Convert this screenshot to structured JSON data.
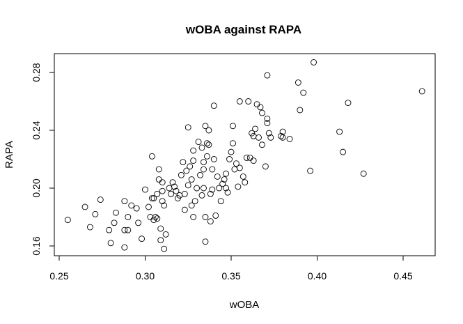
{
  "chart_data": {
    "type": "scatter",
    "title": "wOBA against RAPA",
    "xlabel": "wOBA",
    "ylabel": "RAPA",
    "xlim": [
      0.25,
      0.465
    ],
    "ylim": [
      0.152,
      0.29
    ],
    "xticks": [
      0.25,
      0.3,
      0.35,
      0.4,
      0.45
    ],
    "xtick_labels": [
      "0.25",
      "0.30",
      "0.35",
      "0.40",
      "0.45"
    ],
    "yticks": [
      0.16,
      0.2,
      0.24,
      0.28
    ],
    "ytick_labels": [
      "0.16",
      "0.20",
      "0.24",
      "0.28"
    ],
    "grid": false,
    "marker": "open-circle",
    "points": [
      [
        0.255,
        0.178
      ],
      [
        0.265,
        0.187
      ],
      [
        0.268,
        0.173
      ],
      [
        0.271,
        0.182
      ],
      [
        0.274,
        0.192
      ],
      [
        0.279,
        0.171
      ],
      [
        0.28,
        0.162
      ],
      [
        0.282,
        0.176
      ],
      [
        0.283,
        0.183
      ],
      [
        0.288,
        0.159
      ],
      [
        0.288,
        0.171
      ],
      [
        0.288,
        0.191
      ],
      [
        0.29,
        0.171
      ],
      [
        0.29,
        0.18
      ],
      [
        0.292,
        0.188
      ],
      [
        0.295,
        0.186
      ],
      [
        0.296,
        0.176
      ],
      [
        0.298,
        0.165
      ],
      [
        0.3,
        0.199
      ],
      [
        0.302,
        0.187
      ],
      [
        0.303,
        0.18
      ],
      [
        0.304,
        0.193
      ],
      [
        0.304,
        0.222
      ],
      [
        0.305,
        0.193
      ],
      [
        0.305,
        0.178
      ],
      [
        0.306,
        0.18
      ],
      [
        0.307,
        0.179
      ],
      [
        0.307,
        0.196
      ],
      [
        0.308,
        0.206
      ],
      [
        0.308,
        0.213
      ],
      [
        0.309,
        0.164
      ],
      [
        0.309,
        0.172
      ],
      [
        0.31,
        0.198
      ],
      [
        0.31,
        0.204
      ],
      [
        0.31,
        0.191
      ],
      [
        0.311,
        0.188
      ],
      [
        0.311,
        0.158
      ],
      [
        0.312,
        0.168
      ],
      [
        0.314,
        0.2
      ],
      [
        0.315,
        0.196
      ],
      [
        0.316,
        0.204
      ],
      [
        0.317,
        0.201
      ],
      [
        0.318,
        0.198
      ],
      [
        0.319,
        0.193
      ],
      [
        0.32,
        0.195
      ],
      [
        0.321,
        0.209
      ],
      [
        0.322,
        0.218
      ],
      [
        0.323,
        0.185
      ],
      [
        0.323,
        0.196
      ],
      [
        0.324,
        0.212
      ],
      [
        0.325,
        0.242
      ],
      [
        0.325,
        0.202
      ],
      [
        0.326,
        0.215
      ],
      [
        0.327,
        0.206
      ],
      [
        0.327,
        0.188
      ],
      [
        0.328,
        0.226
      ],
      [
        0.328,
        0.219
      ],
      [
        0.328,
        0.18
      ],
      [
        0.329,
        0.191
      ],
      [
        0.33,
        0.2
      ],
      [
        0.331,
        0.232
      ],
      [
        0.332,
        0.209
      ],
      [
        0.333,
        0.228
      ],
      [
        0.333,
        0.195
      ],
      [
        0.334,
        0.213
      ],
      [
        0.334,
        0.218
      ],
      [
        0.334,
        0.2
      ],
      [
        0.335,
        0.18
      ],
      [
        0.335,
        0.163
      ],
      [
        0.335,
        0.243
      ],
      [
        0.336,
        0.231
      ],
      [
        0.336,
        0.222
      ],
      [
        0.337,
        0.24
      ],
      [
        0.337,
        0.23
      ],
      [
        0.338,
        0.177
      ],
      [
        0.338,
        0.196
      ],
      [
        0.339,
        0.213
      ],
      [
        0.339,
        0.199
      ],
      [
        0.34,
        0.22
      ],
      [
        0.34,
        0.257
      ],
      [
        0.341,
        0.181
      ],
      [
        0.342,
        0.208
      ],
      [
        0.343,
        0.2
      ],
      [
        0.344,
        0.191
      ],
      [
        0.345,
        0.203
      ],
      [
        0.346,
        0.206
      ],
      [
        0.347,
        0.2
      ],
      [
        0.347,
        0.21
      ],
      [
        0.348,
        0.197
      ],
      [
        0.349,
        0.22
      ],
      [
        0.35,
        0.225
      ],
      [
        0.351,
        0.231
      ],
      [
        0.351,
        0.243
      ],
      [
        0.352,
        0.213
      ],
      [
        0.353,
        0.217
      ],
      [
        0.354,
        0.201
      ],
      [
        0.355,
        0.214
      ],
      [
        0.355,
        0.26
      ],
      [
        0.357,
        0.208
      ],
      [
        0.358,
        0.204
      ],
      [
        0.359,
        0.221
      ],
      [
        0.36,
        0.26
      ],
      [
        0.361,
        0.221
      ],
      [
        0.362,
        0.238
      ],
      [
        0.363,
        0.219
      ],
      [
        0.363,
        0.236
      ],
      [
        0.364,
        0.241
      ],
      [
        0.365,
        0.258
      ],
      [
        0.366,
        0.235
      ],
      [
        0.367,
        0.256
      ],
      [
        0.368,
        0.252
      ],
      [
        0.368,
        0.23
      ],
      [
        0.37,
        0.215
      ],
      [
        0.371,
        0.248
      ],
      [
        0.371,
        0.245
      ],
      [
        0.371,
        0.278
      ],
      [
        0.372,
        0.238
      ],
      [
        0.373,
        0.235
      ],
      [
        0.379,
        0.236
      ],
      [
        0.38,
        0.239
      ],
      [
        0.38,
        0.235
      ],
      [
        0.384,
        0.234
      ],
      [
        0.389,
        0.273
      ],
      [
        0.39,
        0.254
      ],
      [
        0.392,
        0.266
      ],
      [
        0.396,
        0.212
      ],
      [
        0.398,
        0.287
      ],
      [
        0.413,
        0.239
      ],
      [
        0.415,
        0.225
      ],
      [
        0.418,
        0.259
      ],
      [
        0.427,
        0.21
      ],
      [
        0.461,
        0.267
      ]
    ]
  }
}
